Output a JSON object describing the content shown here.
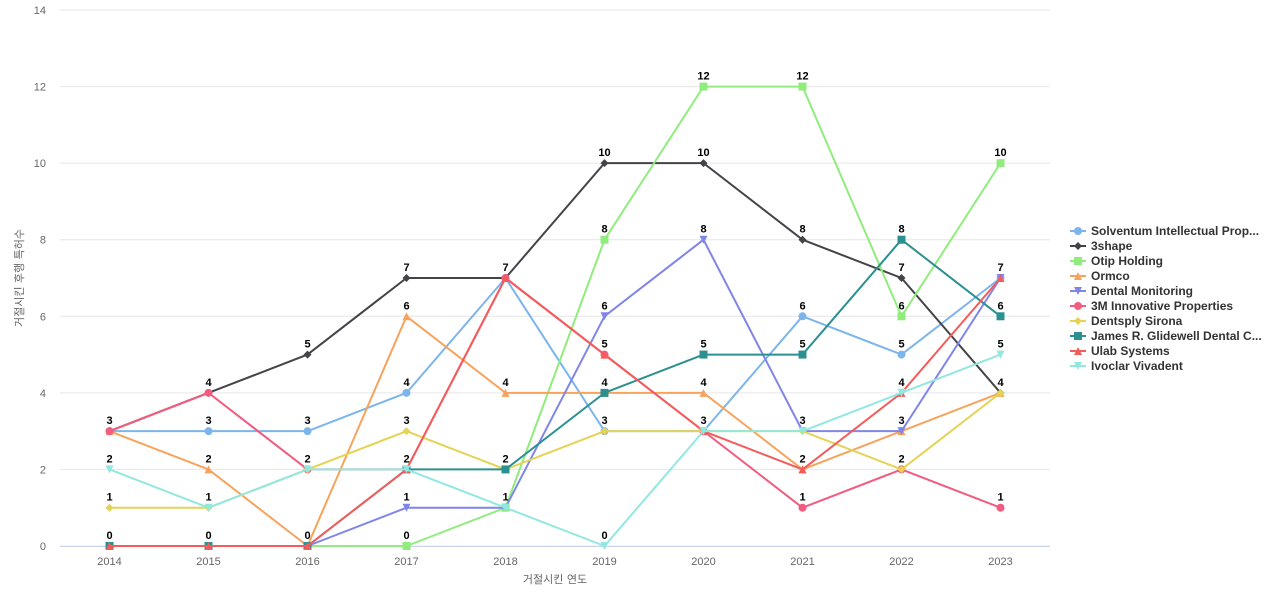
{
  "chart_data": {
    "type": "line",
    "title": "",
    "xlabel": "거절시킨 연도",
    "ylabel": "거절시킨 후행 특허수",
    "x": [
      "2014",
      "2015",
      "2016",
      "2017",
      "2018",
      "2019",
      "2020",
      "2021",
      "2022",
      "2023"
    ],
    "ylim": [
      0,
      14
    ],
    "yticks": [
      0,
      2,
      4,
      6,
      8,
      10,
      12,
      14
    ],
    "grid": true,
    "legend_position": "right",
    "series": [
      {
        "name": "Solventum Intellectual Prop...",
        "color": "#7cb5ec",
        "marker": "circle",
        "values": [
          3,
          3,
          3,
          4,
          7,
          3,
          3,
          6,
          5,
          7
        ]
      },
      {
        "name": "3shape",
        "color": "#434348",
        "marker": "diamond",
        "values": [
          3,
          4,
          5,
          7,
          7,
          10,
          10,
          8,
          7,
          4
        ]
      },
      {
        "name": "Otip Holding",
        "color": "#90ed7d",
        "marker": "square",
        "values": [
          0,
          0,
          0,
          0,
          1,
          8,
          12,
          12,
          6,
          10
        ]
      },
      {
        "name": "Ormco",
        "color": "#f7a35c",
        "marker": "triangle",
        "values": [
          3,
          2,
          0,
          6,
          4,
          4,
          4,
          2,
          3,
          4
        ]
      },
      {
        "name": "Dental Monitoring",
        "color": "#8085e9",
        "marker": "triangle-down",
        "values": [
          0,
          0,
          0,
          1,
          1,
          6,
          8,
          3,
          3,
          7
        ]
      },
      {
        "name": "3M Innovative Properties",
        "color": "#f15c80",
        "marker": "circle",
        "values": [
          3,
          4,
          2,
          2,
          7,
          5,
          3,
          1,
          2,
          1
        ]
      },
      {
        "name": "Dentsply Sirona",
        "color": "#e4d354",
        "marker": "diamond",
        "values": [
          1,
          1,
          2,
          3,
          2,
          3,
          3,
          3,
          2,
          4
        ]
      },
      {
        "name": "James R. Glidewell Dental C...",
        "color": "#2b908f",
        "marker": "square",
        "values": [
          0,
          0,
          0,
          2,
          2,
          4,
          5,
          5,
          8,
          6
        ]
      },
      {
        "name": "Ulab Systems",
        "color": "#f45b5b",
        "marker": "triangle",
        "values": [
          0,
          0,
          0,
          2,
          7,
          5,
          3,
          2,
          4,
          7
        ]
      },
      {
        "name": "Ivoclar Vivadent",
        "color": "#91e8e1",
        "marker": "triangle-down",
        "values": [
          2,
          1,
          2,
          2,
          1,
          0,
          3,
          3,
          4,
          5
        ]
      }
    ],
    "data_labels": [
      {
        "x": "2014",
        "y": 3,
        "text": "3"
      },
      {
        "x": "2014",
        "y": 2,
        "text": "2"
      },
      {
        "x": "2014",
        "y": 1,
        "text": "1"
      },
      {
        "x": "2014",
        "y": 0,
        "text": "0"
      },
      {
        "x": "2015",
        "y": 4,
        "text": "4"
      },
      {
        "x": "2015",
        "y": 3,
        "text": "3"
      },
      {
        "x": "2015",
        "y": 2,
        "text": "2"
      },
      {
        "x": "2015",
        "y": 1,
        "text": "1"
      },
      {
        "x": "2015",
        "y": 0,
        "text": "0"
      },
      {
        "x": "2016",
        "y": 5,
        "text": "5"
      },
      {
        "x": "2016",
        "y": 3,
        "text": "3"
      },
      {
        "x": "2016",
        "y": 2,
        "text": "2"
      },
      {
        "x": "2016",
        "y": 0,
        "text": "0"
      },
      {
        "x": "2017",
        "y": 7,
        "text": "7"
      },
      {
        "x": "2017",
        "y": 6,
        "text": "6"
      },
      {
        "x": "2017",
        "y": 4,
        "text": "4"
      },
      {
        "x": "2017",
        "y": 3,
        "text": "3"
      },
      {
        "x": "2017",
        "y": 2,
        "text": "2"
      },
      {
        "x": "2017",
        "y": 1,
        "text": "1"
      },
      {
        "x": "2017",
        "y": 0,
        "text": "0"
      },
      {
        "x": "2018",
        "y": 7,
        "text": "7"
      },
      {
        "x": "2018",
        "y": 4,
        "text": "4"
      },
      {
        "x": "2018",
        "y": 2,
        "text": "2"
      },
      {
        "x": "2018",
        "y": 1,
        "text": "1"
      },
      {
        "x": "2019",
        "y": 10,
        "text": "10"
      },
      {
        "x": "2019",
        "y": 8,
        "text": "8"
      },
      {
        "x": "2019",
        "y": 6,
        "text": "6"
      },
      {
        "x": "2019",
        "y": 5,
        "text": "5"
      },
      {
        "x": "2019",
        "y": 4,
        "text": "4"
      },
      {
        "x": "2019",
        "y": 3,
        "text": "3"
      },
      {
        "x": "2019",
        "y": 0,
        "text": "0"
      },
      {
        "x": "2020",
        "y": 12,
        "text": "12"
      },
      {
        "x": "2020",
        "y": 10,
        "text": "10"
      },
      {
        "x": "2020",
        "y": 8,
        "text": "8"
      },
      {
        "x": "2020",
        "y": 5,
        "text": "5"
      },
      {
        "x": "2020",
        "y": 4,
        "text": "4"
      },
      {
        "x": "2020",
        "y": 3,
        "text": "3"
      },
      {
        "x": "2021",
        "y": 12,
        "text": "12"
      },
      {
        "x": "2021",
        "y": 8,
        "text": "8"
      },
      {
        "x": "2021",
        "y": 6,
        "text": "6"
      },
      {
        "x": "2021",
        "y": 5,
        "text": "5"
      },
      {
        "x": "2021",
        "y": 3,
        "text": "3"
      },
      {
        "x": "2021",
        "y": 2,
        "text": "2"
      },
      {
        "x": "2021",
        "y": 1,
        "text": "1"
      },
      {
        "x": "2022",
        "y": 8,
        "text": "8"
      },
      {
        "x": "2022",
        "y": 7,
        "text": "7"
      },
      {
        "x": "2022",
        "y": 6,
        "text": "6"
      },
      {
        "x": "2022",
        "y": 5,
        "text": "5"
      },
      {
        "x": "2022",
        "y": 4,
        "text": "4"
      },
      {
        "x": "2022",
        "y": 3,
        "text": "3"
      },
      {
        "x": "2022",
        "y": 2,
        "text": "2"
      },
      {
        "x": "2023",
        "y": 10,
        "text": "10"
      },
      {
        "x": "2023",
        "y": 7,
        "text": "7"
      },
      {
        "x": "2023",
        "y": 6,
        "text": "6"
      },
      {
        "x": "2023",
        "y": 5,
        "text": "5"
      },
      {
        "x": "2023",
        "y": 4,
        "text": "4"
      },
      {
        "x": "2023",
        "y": 1,
        "text": "1"
      }
    ]
  }
}
